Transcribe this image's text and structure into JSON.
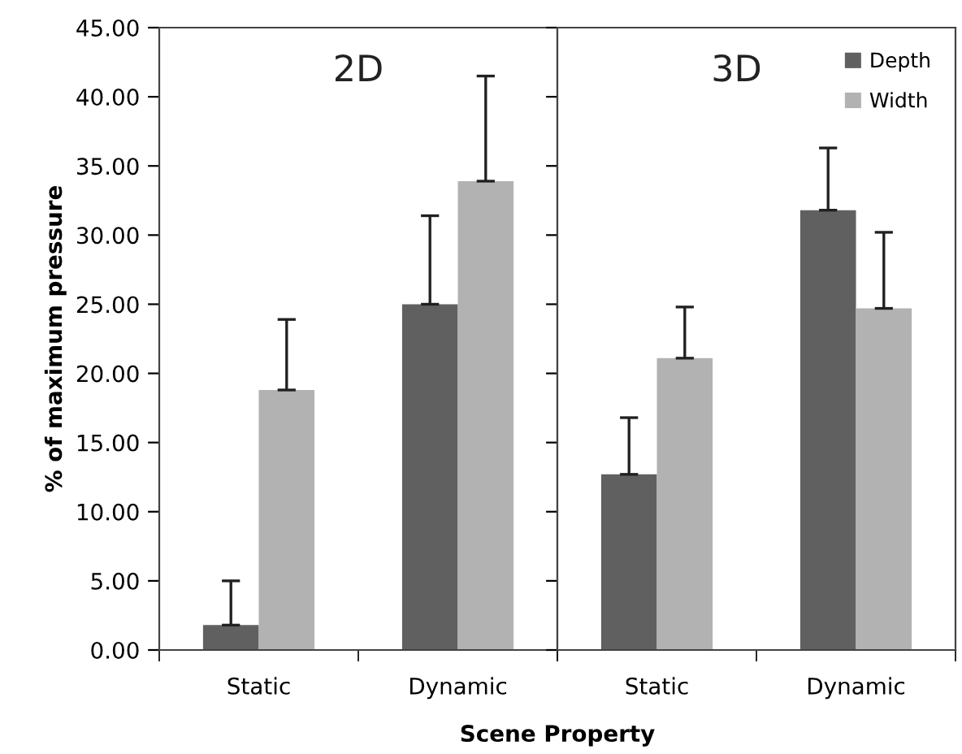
{
  "chart_data": [
    {
      "type": "bar",
      "title": "2D",
      "ylabel": "% of maximum pressure",
      "xlabel": "Scene Property",
      "categories": [
        "Static",
        "Dynamic"
      ],
      "series": [
        {
          "color": "#606060",
          "values": [
            1.8,
            25.0
          ],
          "errors": [
            [
              1.8,
              5.0
            ],
            [
              25.0,
              31.4
            ]
          ]
        },
        {
          "color": "#b2b2b2",
          "values": [
            18.8,
            33.9
          ],
          "errors": [
            [
              18.8,
              23.9
            ],
            [
              33.9,
              41.5
            ]
          ]
        }
      ],
      "ylim": [
        0,
        45
      ],
      "yticks": [
        {
          "value": 0,
          "label": "0.00"
        },
        {
          "value": 5,
          "label": "5.00"
        },
        {
          "value": 10,
          "label": "10.00"
        },
        {
          "value": 15,
          "label": "15.00"
        },
        {
          "value": 20,
          "label": "20.00"
        },
        {
          "value": 25,
          "label": "25.00"
        },
        {
          "value": 30,
          "label": "30.00"
        },
        {
          "value": 35,
          "label": "35.00"
        },
        {
          "value": 40,
          "label": "40.00"
        },
        {
          "value": 45,
          "label": "45.00"
        }
      ]
    },
    {
      "type": "bar",
      "title": "3D",
      "categories": [
        "Static",
        "Dynamic"
      ],
      "series": [
        {
          "name": "Depth",
          "color": "#606060",
          "values": [
            12.7,
            31.8
          ],
          "errors": [
            [
              12.7,
              16.8
            ],
            [
              31.8,
              36.3
            ]
          ]
        },
        {
          "name": "Width",
          "color": "#b2b2b2",
          "values": [
            21.1,
            24.7
          ],
          "errors": [
            [
              21.1,
              24.8
            ],
            [
              24.7,
              30.2
            ]
          ]
        }
      ],
      "ylim": [
        0,
        45
      ],
      "tick_labels": "x",
      "legend": "top right"
    }
  ]
}
